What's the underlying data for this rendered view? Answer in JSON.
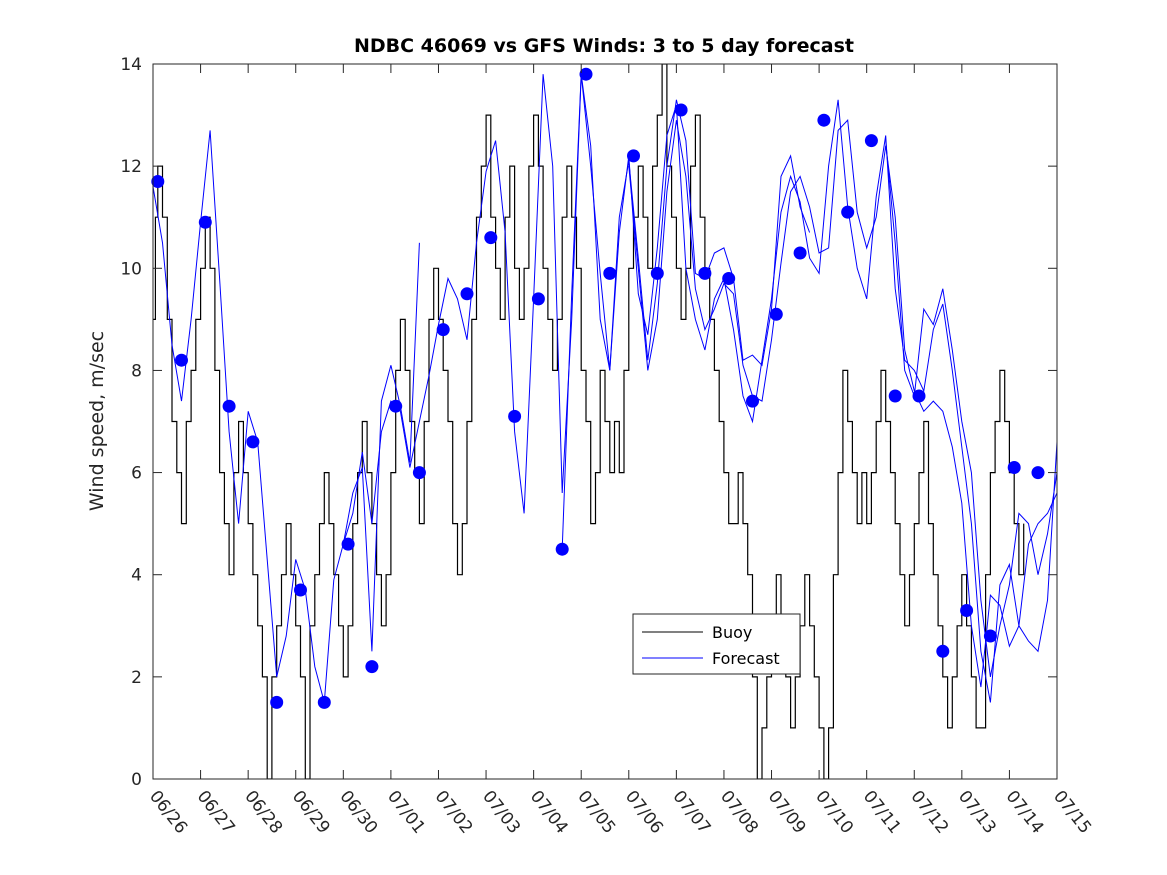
{
  "chart_data": {
    "type": "line",
    "title": "NDBC 46069 vs GFS Winds: 3 to 5 day forecast",
    "xlabel": "",
    "ylabel": "Wind speed, m/sec",
    "ylim": [
      0,
      14
    ],
    "yticks": [
      0,
      2,
      4,
      6,
      8,
      10,
      12,
      14
    ],
    "xlim": [
      0,
      19
    ],
    "xtick_labels": [
      "06/26",
      "06/27",
      "06/28",
      "06/29",
      "06/30",
      "07/01",
      "07/02",
      "07/03",
      "07/04",
      "07/05",
      "07/06",
      "07/07",
      "07/08",
      "07/09",
      "07/10",
      "07/11",
      "07/12",
      "07/13",
      "07/14",
      "07/15"
    ],
    "legend": {
      "position": "lower-center",
      "entries": [
        "Buoy",
        "Forecast"
      ]
    },
    "colors": {
      "buoy": "#000000",
      "forecast": "#0000ff",
      "markers": "#0000ff"
    },
    "grid": false,
    "buoy": {
      "name": "Buoy",
      "x": [
        0,
        0.05,
        0.1,
        0.2,
        0.3,
        0.4,
        0.5,
        0.6,
        0.7,
        0.8,
        0.9,
        1.0,
        1.1,
        1.2,
        1.3,
        1.4,
        1.5,
        1.6,
        1.7,
        1.8,
        1.9,
        2.0,
        2.1,
        2.2,
        2.3,
        2.4,
        2.5,
        2.6,
        2.7,
        2.8,
        2.9,
        3.0,
        3.1,
        3.2,
        3.3,
        3.4,
        3.5,
        3.6,
        3.7,
        3.8,
        3.9,
        4.0,
        4.1,
        4.2,
        4.3,
        4.4,
        4.5,
        4.6,
        4.7,
        4.8,
        4.9,
        5.0,
        5.1,
        5.2,
        5.3,
        5.4,
        5.5,
        5.6,
        5.7,
        5.8,
        5.9,
        6.0,
        6.1,
        6.2,
        6.3,
        6.4,
        6.5,
        6.6,
        6.7,
        6.8,
        6.9,
        7.0,
        7.1,
        7.2,
        7.3,
        7.4,
        7.5,
        7.6,
        7.7,
        7.8,
        7.9,
        8.0,
        8.1,
        8.2,
        8.3,
        8.4,
        8.5,
        8.6,
        8.7,
        8.8,
        8.9,
        9.0,
        9.1,
        9.2,
        9.3,
        9.4,
        9.5,
        9.6,
        9.7,
        9.8,
        9.9,
        10.0,
        10.1,
        10.2,
        10.3,
        10.4,
        10.5,
        10.6,
        10.7,
        10.8,
        10.9,
        11.0,
        11.1,
        11.2,
        11.3,
        11.4,
        11.5,
        11.6,
        11.7,
        11.8,
        11.9,
        12.0,
        12.1,
        12.2,
        12.3,
        12.4,
        12.5,
        12.6,
        12.7,
        12.8,
        12.9,
        13.0,
        13.1,
        13.2,
        13.3,
        13.4,
        13.5,
        13.6,
        13.7,
        13.8,
        13.9,
        14.0,
        14.1,
        14.2,
        14.3,
        14.4,
        14.5,
        14.6,
        14.7,
        14.8,
        14.9,
        15.0,
        15.1,
        15.2,
        15.3,
        15.4,
        15.5,
        15.6,
        15.7,
        15.8,
        15.9,
        16.0,
        16.1,
        16.2,
        16.3,
        16.4,
        16.5,
        16.6,
        16.7,
        16.8,
        16.9,
        17.0,
        17.1,
        17.2,
        17.3,
        17.4,
        17.5,
        17.6,
        17.7,
        17.8,
        17.9,
        18.0,
        18.1,
        18.2,
        18.3
      ],
      "y": [
        9,
        11,
        12,
        11,
        9,
        7,
        6,
        5,
        7,
        8,
        9,
        10,
        11,
        10,
        8,
        6,
        5,
        4,
        6,
        7,
        6,
        5,
        4,
        3,
        2,
        0,
        2,
        3,
        4,
        5,
        4,
        3,
        2,
        0,
        3,
        4,
        5,
        6,
        5,
        4,
        3,
        2,
        3,
        5,
        6,
        7,
        6,
        5,
        4,
        3,
        4,
        6,
        8,
        9,
        8,
        7,
        6,
        5,
        7,
        9,
        10,
        9,
        8,
        7,
        5,
        4,
        5,
        7,
        9,
        11,
        12,
        13,
        11,
        10,
        9,
        11,
        12,
        10,
        9,
        10,
        12,
        13,
        12,
        10,
        9,
        8,
        9,
        11,
        12,
        11,
        10,
        8,
        7,
        5,
        6,
        8,
        7,
        6,
        7,
        6,
        8,
        10,
        11,
        12,
        11,
        10,
        12,
        13,
        14,
        12,
        11,
        10,
        9,
        10,
        12,
        13,
        11,
        10,
        9,
        8,
        7,
        6,
        5,
        5,
        6,
        5,
        4,
        2,
        0,
        1,
        2,
        3,
        4,
        3,
        2,
        1,
        2,
        3,
        4,
        3,
        2,
        1,
        0,
        1,
        4,
        6,
        8,
        7,
        6,
        5,
        6,
        5,
        6,
        7,
        8,
        7,
        6,
        5,
        4,
        3,
        4,
        5,
        6,
        7,
        5,
        4,
        3,
        2,
        1,
        2,
        3,
        4,
        3,
        2,
        1,
        1,
        4,
        6,
        7,
        8,
        7,
        6,
        5,
        4,
        5
      ]
    },
    "forecast_runs": [
      {
        "x": [
          0,
          0.2,
          0.4,
          0.6,
          0.8,
          1.0,
          1.2,
          1.4,
          1.6,
          1.8,
          2.0,
          2.2,
          2.4,
          2.6,
          2.8,
          3.0,
          3.2,
          3.4,
          3.6,
          3.8,
          4.0,
          4.2,
          4.4,
          4.6,
          4.8,
          5.0,
          5.2,
          5.4,
          5.6
        ],
        "y": [
          11.6,
          10.5,
          8.5,
          7.4,
          9.0,
          10.9,
          12.7,
          9.8,
          6.8,
          5.0,
          7.2,
          6.6,
          4.3,
          2.0,
          2.8,
          4.3,
          3.7,
          2.2,
          1.5,
          3.9,
          4.6,
          5.6,
          6.1,
          2.5,
          7.4,
          8.1,
          7.3,
          6.2,
          10.5
        ]
      },
      {
        "x": [
          4.0,
          4.2,
          4.4,
          4.6,
          4.8,
          5.0,
          5.2,
          5.4,
          5.6,
          5.8,
          6.0,
          6.2,
          6.4,
          6.6,
          6.8,
          7.0,
          7.2,
          7.4,
          7.6,
          7.8,
          8.0,
          8.2,
          8.4,
          8.6,
          8.8,
          9.0,
          9.2,
          9.4,
          9.6,
          9.8,
          10.0,
          10.2,
          10.4,
          10.6,
          10.8,
          11.0,
          11.2,
          11.4,
          11.6,
          11.8,
          12.0,
          12.2,
          12.4,
          12.6,
          12.8,
          13.0,
          13.2,
          13.4,
          13.6,
          13.8
        ],
        "y": [
          4.6,
          5.2,
          6.4,
          5.0,
          6.8,
          7.4,
          7.2,
          6.1,
          7.0,
          7.9,
          8.9,
          9.8,
          9.4,
          8.6,
          10.5,
          11.9,
          12.5,
          10.7,
          6.8,
          5.2,
          9.4,
          13.8,
          12.0,
          5.6,
          9.0,
          13.8,
          12.0,
          9.9,
          8.0,
          11.0,
          12.1,
          10.2,
          8.2,
          9.7,
          12.0,
          13.3,
          12.5,
          9.9,
          9.8,
          10.3,
          10.4,
          9.8,
          8.2,
          8.3,
          8.1,
          9.2,
          11.8,
          12.2,
          11.2,
          10.7
        ]
      },
      {
        "x": [
          8.6,
          8.8,
          9.0,
          9.2,
          9.4,
          9.6,
          9.8,
          10.0,
          10.2,
          10.4,
          10.6,
          10.8,
          11.0,
          11.2,
          11.4,
          11.6,
          11.8,
          12.0,
          12.2,
          12.4,
          12.6,
          12.8,
          13.0,
          13.2,
          13.4,
          13.6,
          13.8,
          14.0,
          14.2,
          14.4,
          14.6,
          14.8,
          15.0,
          15.2,
          15.4,
          15.6,
          15.8,
          16.0,
          16.2,
          16.4,
          16.6,
          16.8,
          17.0,
          17.2,
          17.4,
          17.6,
          17.8,
          18.0,
          18.2,
          18.4,
          18.6,
          18.8,
          19.0
        ],
        "y": [
          4.5,
          9.5,
          13.8,
          12.4,
          9.0,
          8.0,
          10.7,
          12.2,
          9.5,
          8.7,
          10.4,
          12.6,
          13.2,
          10.0,
          9.0,
          8.4,
          9.4,
          9.8,
          8.8,
          7.5,
          7.0,
          8.2,
          9.4,
          11.1,
          11.8,
          11.3,
          10.2,
          9.9,
          12.0,
          13.3,
          11.2,
          10.0,
          9.4,
          11.4,
          12.6,
          9.6,
          8.2,
          8.0,
          7.6,
          8.8,
          9.3,
          8.0,
          6.5,
          5.0,
          2.5,
          1.5,
          3.8,
          4.2,
          3.0,
          2.7,
          2.5,
          3.5,
          6.6
        ]
      },
      {
        "x": [
          10.0,
          10.2,
          10.4,
          10.6,
          10.8,
          11.0,
          11.2,
          11.4,
          11.6,
          11.8,
          12.0,
          12.2,
          12.4,
          12.6,
          12.8,
          13.0,
          13.2,
          13.4,
          13.6,
          13.8,
          14.0,
          14.2,
          14.4,
          14.6,
          14.8,
          15.0,
          15.2,
          15.4,
          15.6,
          15.8,
          16.0,
          16.2,
          16.4,
          16.6,
          16.8,
          17.0,
          17.2,
          17.4,
          17.6,
          17.8,
          18.0,
          18.2,
          18.4,
          18.6,
          18.8,
          19.0
        ],
        "y": [
          12.0,
          10.0,
          8.0,
          9.0,
          11.5,
          12.9,
          11.8,
          9.6,
          8.8,
          9.2,
          9.7,
          9.5,
          8.1,
          7.5,
          7.4,
          8.6,
          10.1,
          11.5,
          11.8,
          11.2,
          10.3,
          10.4,
          12.7,
          12.9,
          11.1,
          10.4,
          11.0,
          12.4,
          11.0,
          8.4,
          7.6,
          7.2,
          7.4,
          7.2,
          6.5,
          5.4,
          3.0,
          1.8,
          3.6,
          3.4,
          2.6,
          3.0,
          4.6,
          5.0,
          5.2,
          5.6
        ]
      },
      {
        "x": [
          15.4,
          15.6,
          15.8,
          16.0,
          16.2,
          16.4,
          16.6,
          16.8,
          17.0,
          17.2,
          17.4,
          17.6,
          17.8,
          18.0,
          18.2,
          18.4,
          18.6,
          18.8,
          19.0
        ],
        "y": [
          12.5,
          10.5,
          8.0,
          7.5,
          9.2,
          8.9,
          9.6,
          8.4,
          7.0,
          6.0,
          3.5,
          2.0,
          3.0,
          3.8,
          5.2,
          5.0,
          4.0,
          4.8,
          6.0
        ]
      }
    ],
    "forecast_markers": {
      "x": [
        0.1,
        0.6,
        1.1,
        1.6,
        2.1,
        2.6,
        3.1,
        3.6,
        4.1,
        4.6,
        5.1,
        5.6,
        6.1,
        6.6,
        7.1,
        7.6,
        8.1,
        8.6,
        9.1,
        9.6,
        10.1,
        10.6,
        11.1,
        11.6,
        12.1,
        12.6,
        13.1,
        13.6,
        14.1,
        14.6,
        15.1,
        15.6,
        16.1,
        16.6,
        17.1,
        17.6,
        18.1,
        18.6
      ],
      "y": [
        11.7,
        8.2,
        10.9,
        7.3,
        6.6,
        1.5,
        3.7,
        1.5,
        4.6,
        2.2,
        7.3,
        6.0,
        8.8,
        9.5,
        10.6,
        7.1,
        9.4,
        4.5,
        13.8,
        9.9,
        12.2,
        9.9,
        13.1,
        9.9,
        9.8,
        7.4,
        9.1,
        10.3,
        12.9,
        11.1,
        12.5,
        7.5,
        7.5,
        2.5,
        3.3,
        2.8,
        6.1,
        6.0
      ]
    }
  }
}
